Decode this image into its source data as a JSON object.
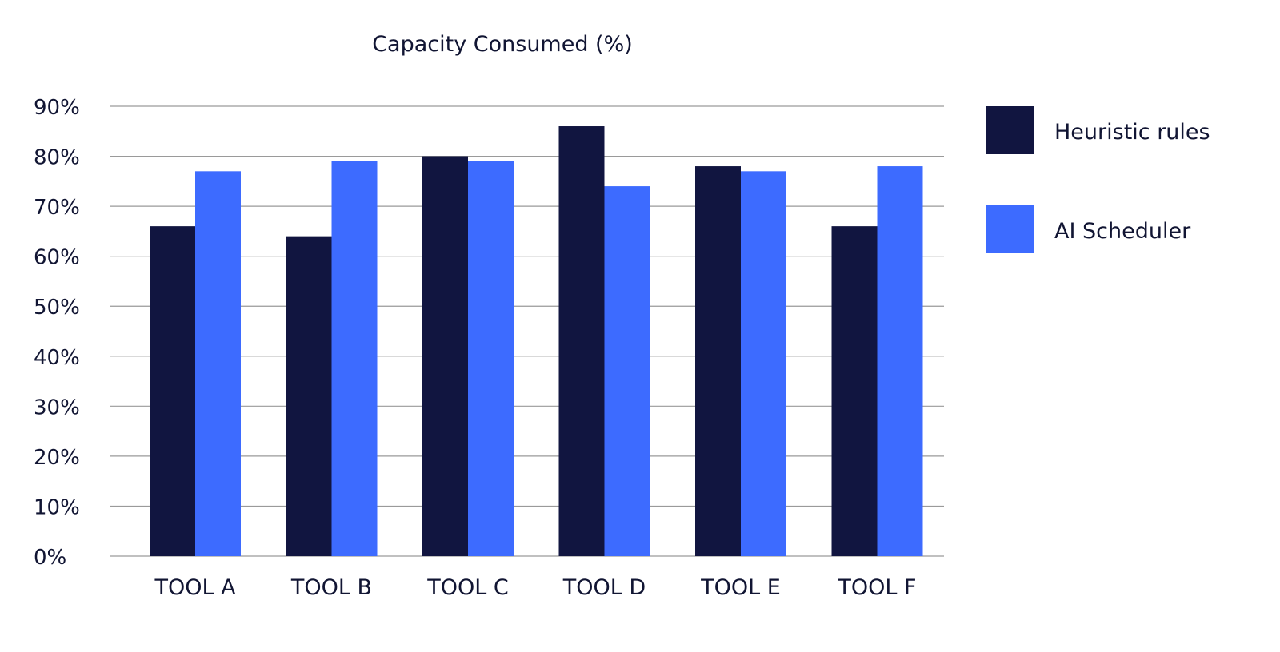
{
  "chart_data": {
    "type": "bar",
    "title": "Capacity Consumed (%)",
    "xlabel": "",
    "ylabel": "",
    "categories": [
      "TOOL A",
      "TOOL B",
      "TOOL C",
      "TOOL D",
      "TOOL E",
      "TOOL F"
    ],
    "series": [
      {
        "name": "Heuristic rules",
        "color": "#111540",
        "values": [
          66,
          64,
          80,
          86,
          78,
          66
        ]
      },
      {
        "name": "AI Scheduler",
        "color": "#3d6bff",
        "values": [
          77,
          79,
          79,
          74,
          77,
          78
        ]
      }
    ],
    "ylim": [
      0,
      90
    ],
    "yticks": [
      0,
      10,
      20,
      30,
      40,
      50,
      60,
      70,
      80,
      90
    ],
    "ytick_labels": [
      "0%",
      "10%",
      "20%",
      "30%",
      "40%",
      "50%",
      "60%",
      "70%",
      "80%",
      "90%"
    ],
    "grid": true,
    "legend_position": "right"
  }
}
